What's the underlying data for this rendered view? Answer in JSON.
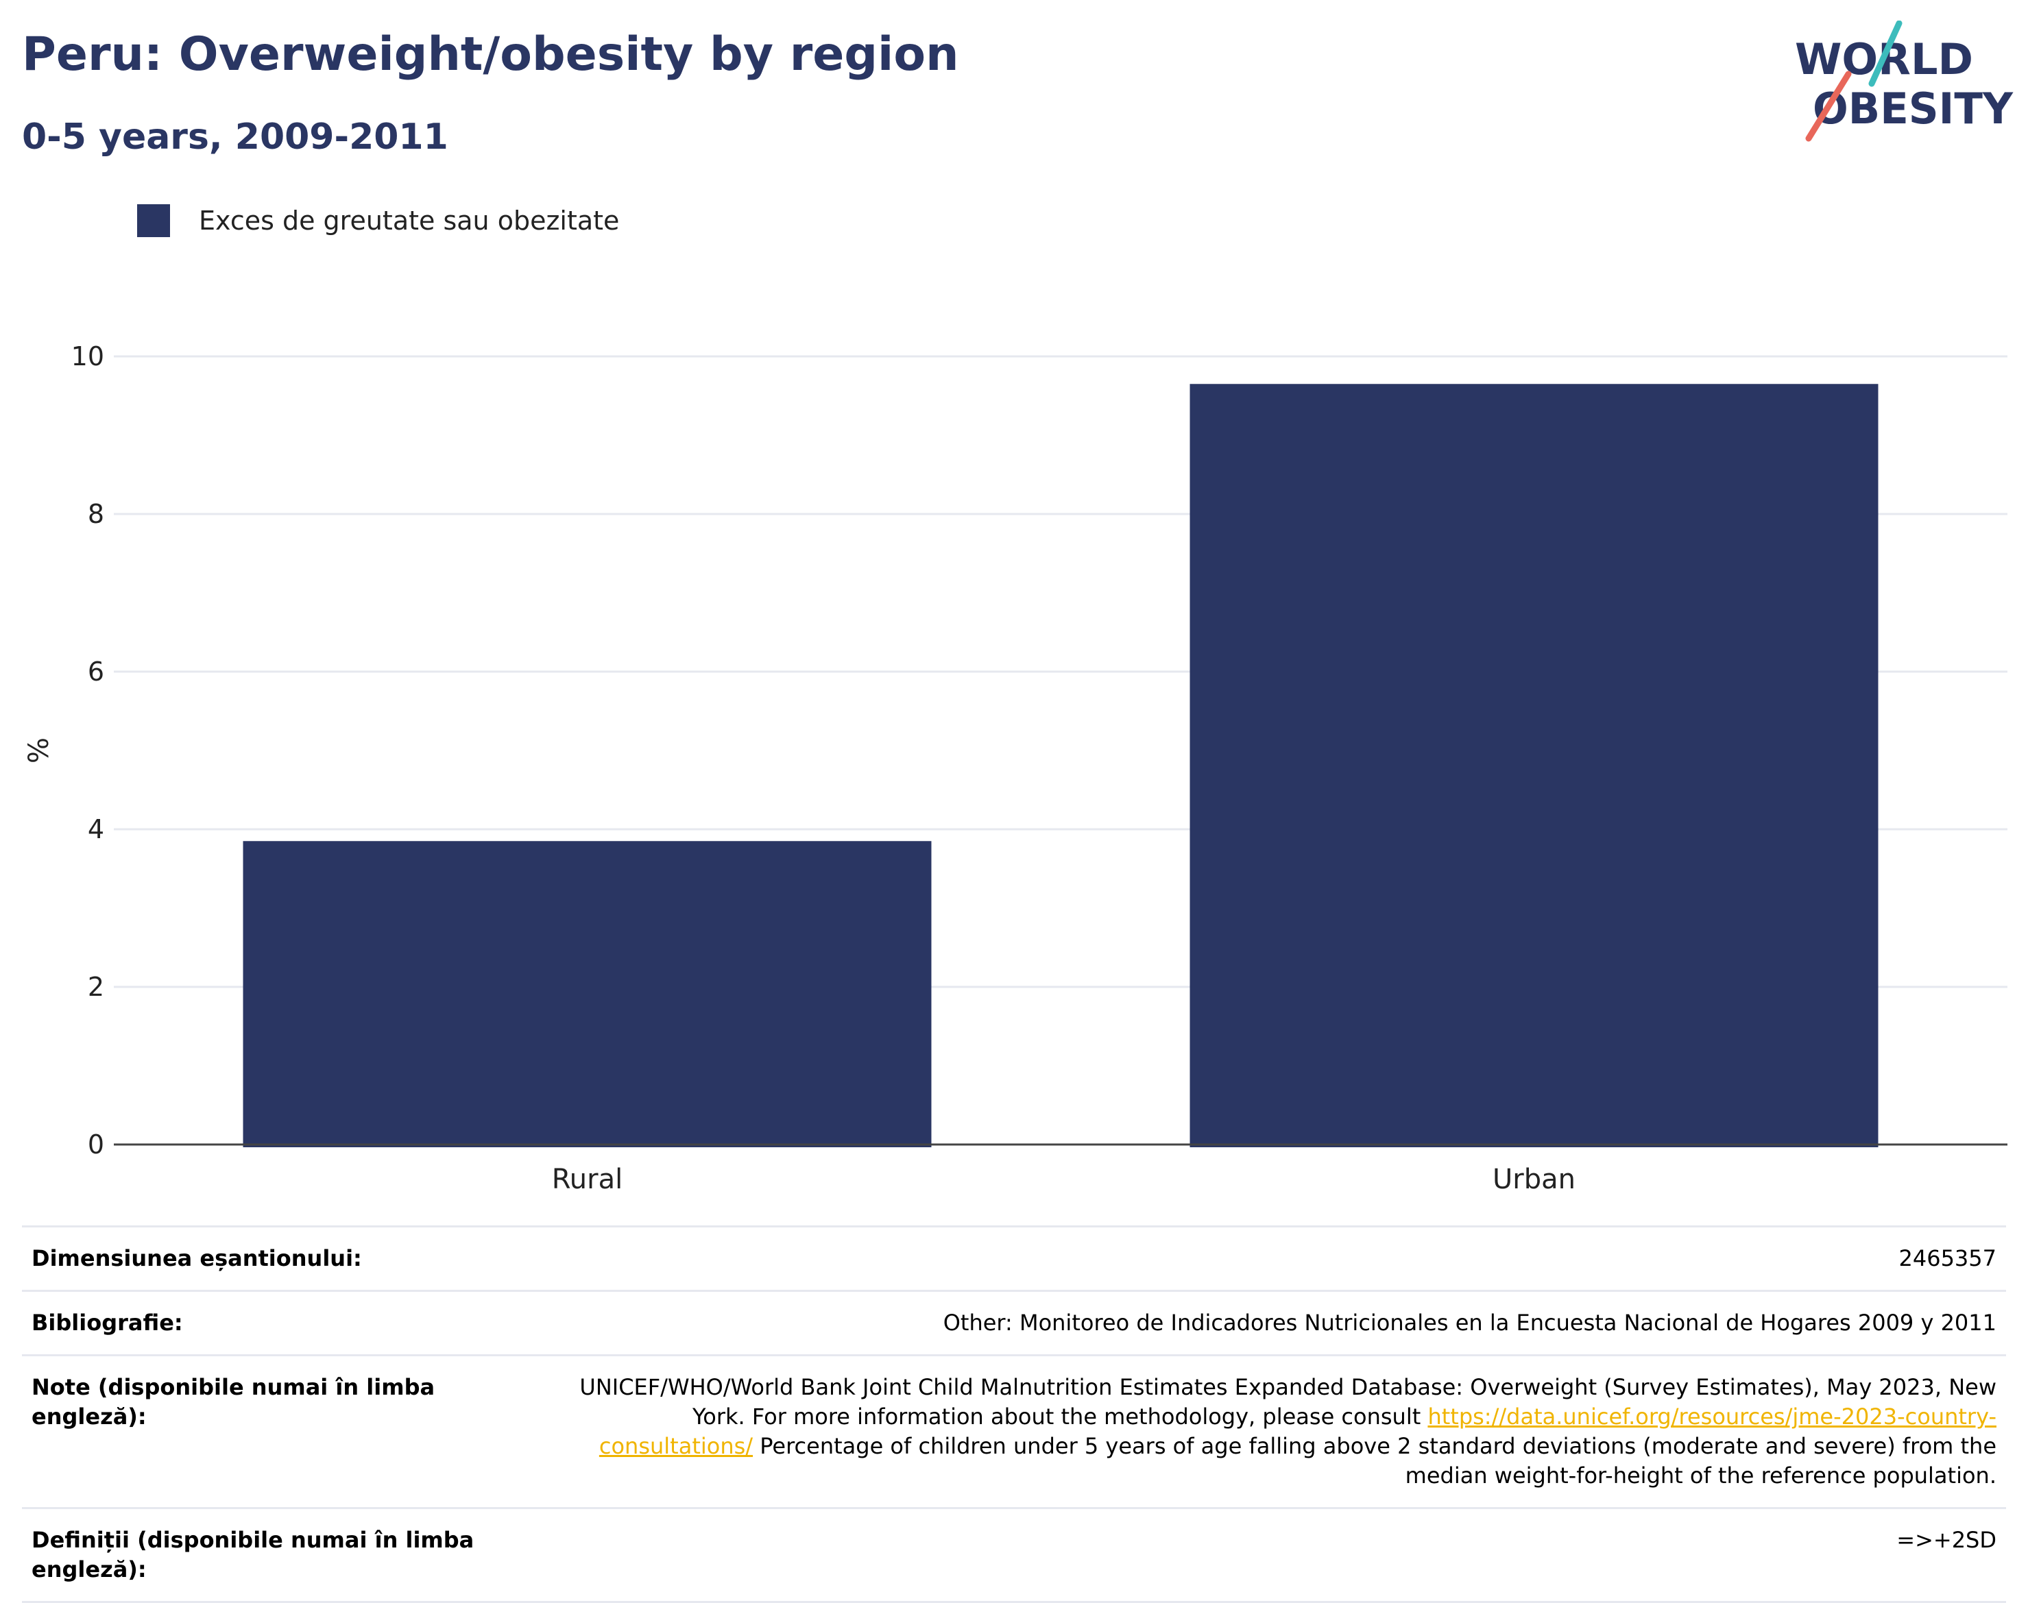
{
  "header": {
    "title": "Peru: Overweight/obesity by region",
    "subtitle": "0-5 years, 2009-2011"
  },
  "logo": {
    "line1": "WORLD",
    "line2": "OBESITY",
    "accent_teal": "#3dbcbc",
    "accent_red": "#e8675a"
  },
  "legend": {
    "label": "Exces de greutate sau obezitate",
    "color": "#2a3663"
  },
  "chart_data": {
    "type": "bar",
    "categories": [
      "Rural",
      "Urban"
    ],
    "series": [
      {
        "name": "Exces de greutate sau obezitate",
        "values": [
          3.85,
          9.65
        ],
        "color": "#2a3663"
      }
    ],
    "ylabel": "%",
    "xlabel": "",
    "ylim": [
      0,
      10
    ],
    "yticks": [
      0,
      2,
      4,
      6,
      8,
      10
    ],
    "grid": true,
    "legend_position": "top-left"
  },
  "info": {
    "sample_size_label": "Dimensiunea eșantionului:",
    "sample_size_value": "2465357",
    "bibliography_label": "Bibliografie:",
    "bibliography_value": "Other: Monitoreo de Indicadores Nutricionales en la Encuesta Nacional de Hogares 2009 y 2011",
    "notes_label": "Note (disponibile numai în limba engleză):",
    "notes_text_1": "UNICEF/WHO/World Bank Joint Child Malnutrition Estimates Expanded Database: Overweight (Survey Estimates), May 2023, New York. For more information about the methodology, please consult ",
    "notes_link": "https://data.unicef.org/resources/jme-2023-country-consultations/",
    "notes_text_2": " Percentage of children under 5 years of age falling above 2 standard deviations (moderate and severe) from the median weight-for-height of the reference population.",
    "definitions_label": "Definiții (disponibile numai în limba engleză):",
    "definitions_value": "=>+2SD"
  }
}
